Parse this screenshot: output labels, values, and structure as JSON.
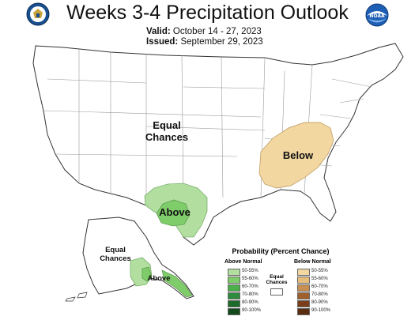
{
  "header": {
    "title": "Weeks 3-4 Precipitation Outlook",
    "valid_label": "Valid:",
    "valid_value": "October 14 - 27, 2023",
    "issued_label": "Issued:",
    "issued_value": "September 29, 2023",
    "left_logo": "doc-seal-icon",
    "right_logo": "noaa-logo-icon"
  },
  "colors": {
    "above_50_55": "#b2dfa0",
    "above_55_60": "#7fcc6a",
    "above_60_70": "#4cb04a",
    "above_70_80": "#2e8b3d",
    "above_80_90": "#1d6b2b",
    "above_90_100": "#124a1b",
    "below_50_55": "#f2d7a0",
    "below_55_60": "#e6be7a",
    "below_60_70": "#c89050",
    "below_70_80": "#a0602c",
    "below_80_90": "#7a3f1a",
    "below_90_100": "#5a2c10",
    "state_border": "#a0a0a0"
  },
  "map": {
    "conus_equal_chances": "Equal Chances",
    "southeast_label": "Below",
    "texas_label": "Above",
    "alaska_equal_chances": "Equal Chances",
    "alaska_label": "Above"
  },
  "legend": {
    "title": "Probability (Percent Chance)",
    "above_header": "Above Normal",
    "below_header": "Below Normal",
    "equal_chances": "Equal Chances",
    "above_items": [
      "50-55%",
      "55-60%",
      "60-70%",
      "70-80%",
      "80-90%",
      "90-100%"
    ],
    "below_items": [
      "50-55%",
      "55-60%",
      "60-70%",
      "70-80%",
      "80-90%",
      "90-100%"
    ]
  }
}
